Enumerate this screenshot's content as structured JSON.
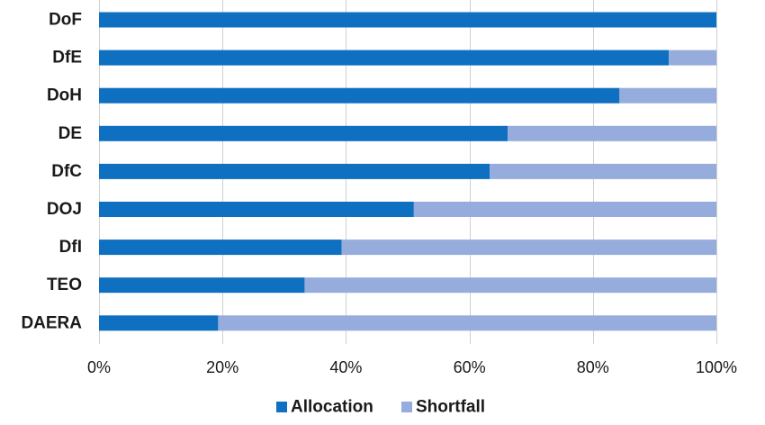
{
  "chart_data": {
    "type": "bar",
    "orientation": "horizontal",
    "stacked": "percent",
    "categories": [
      "DoF",
      "DfE",
      "DoH",
      "DE",
      "DfC",
      "DOJ",
      "DfI",
      "TEO",
      "DAERA"
    ],
    "series": [
      {
        "name": "Allocation",
        "color": "#0f6fc0",
        "values": [
          100,
          92.3,
          84.3,
          66.2,
          63.3,
          51.0,
          39.3,
          33.3,
          19.3
        ]
      },
      {
        "name": "Shortfall",
        "color": "#95acdc",
        "values": [
          0,
          7.7,
          15.7,
          33.8,
          36.7,
          49.0,
          60.7,
          66.7,
          80.7
        ]
      }
    ],
    "xlim": [
      0,
      100
    ],
    "x_ticks": [
      "0%",
      "20%",
      "40%",
      "60%",
      "80%",
      "100%"
    ],
    "x_tick_values": [
      0,
      20,
      40,
      60,
      80,
      100
    ],
    "grid": "vertical",
    "legend_position": "bottom",
    "title": "",
    "xlabel": "",
    "ylabel": ""
  }
}
